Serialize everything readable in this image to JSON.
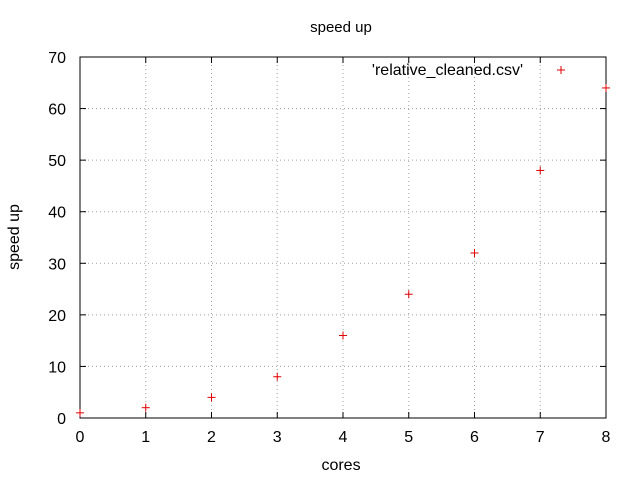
{
  "chart_data": {
    "type": "scatter",
    "title": "speed up",
    "xlabel": "cores",
    "ylabel": "speed up",
    "xlim": [
      0,
      8
    ],
    "ylim": [
      0,
      70
    ],
    "xticks": [
      "0",
      "1",
      "2",
      "3",
      "4",
      "5",
      "6",
      "7",
      "8"
    ],
    "yticks": [
      "0",
      "10",
      "20",
      "30",
      "40",
      "50",
      "60",
      "70"
    ],
    "grid": true,
    "legend": {
      "position": "top-right",
      "label": "'relative_cleaned.csv'"
    },
    "series": [
      {
        "name": "'relative_cleaned.csv'",
        "marker": "+",
        "color": "#e00000",
        "x": [
          0,
          1,
          2,
          3,
          4,
          5,
          6,
          7,
          8
        ],
        "y": [
          1,
          2,
          4,
          8,
          16,
          24,
          32,
          48,
          64
        ]
      }
    ]
  }
}
